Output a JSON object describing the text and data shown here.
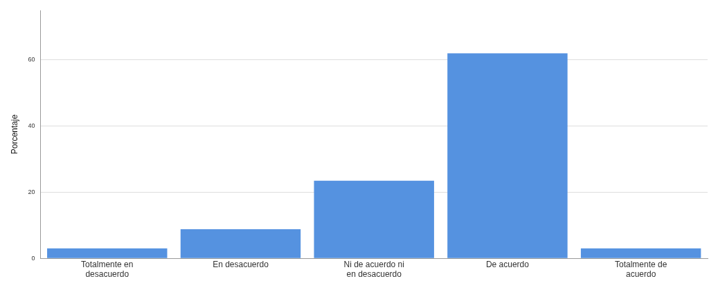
{
  "chart_data": {
    "type": "bar",
    "ylabel": "Porcentaje",
    "categories": [
      "Totalmente en desacuerdo",
      "En desacuerdo",
      "Ni de acuerdo ni en desacuerdo",
      "De acuerdo",
      "Totalmente de acuerdo"
    ],
    "values": [
      3,
      8.8,
      23.5,
      62,
      3
    ],
    "color": "#5592e0",
    "ylim": [
      0,
      75
    ],
    "yticks": [
      0,
      20,
      40,
      60
    ],
    "grid": "y"
  }
}
